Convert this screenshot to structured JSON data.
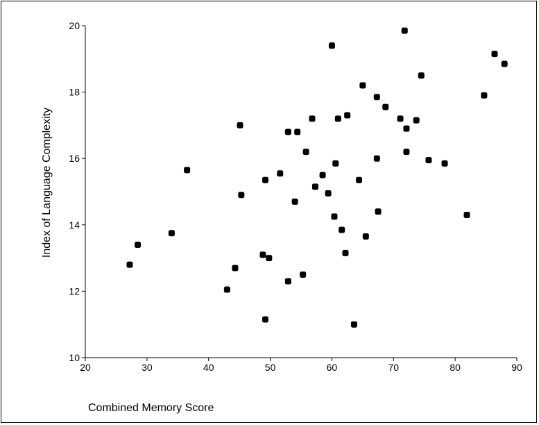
{
  "chart_data": {
    "type": "scatter",
    "title": "",
    "xlabel": "Combined Memory Score",
    "ylabel": "Index of Language Complexity",
    "xlim": [
      20,
      90
    ],
    "ylim": [
      10,
      20
    ],
    "x_ticks": [
      20,
      30,
      40,
      50,
      60,
      70,
      80,
      90
    ],
    "y_ticks": [
      10,
      12,
      14,
      16,
      18,
      20
    ],
    "x_tick_labels": [
      "20",
      "30",
      "40",
      "50",
      "60",
      "70",
      "80",
      "90"
    ],
    "y_tick_labels": [
      "10",
      "12",
      "14",
      "16",
      "18",
      "20"
    ],
    "grid": false,
    "legend": "none",
    "marker_color": "#000000",
    "points": [
      {
        "x": 27.2,
        "y": 12.8
      },
      {
        "x": 28.5,
        "y": 13.4
      },
      {
        "x": 34.0,
        "y": 13.75
      },
      {
        "x": 36.5,
        "y": 15.65
      },
      {
        "x": 43.0,
        "y": 12.05
      },
      {
        "x": 44.3,
        "y": 12.7
      },
      {
        "x": 45.1,
        "y": 17.0
      },
      {
        "x": 45.3,
        "y": 14.9
      },
      {
        "x": 48.8,
        "y": 13.1
      },
      {
        "x": 49.2,
        "y": 15.35
      },
      {
        "x": 49.2,
        "y": 11.15
      },
      {
        "x": 49.8,
        "y": 13.0
      },
      {
        "x": 51.6,
        "y": 15.55
      },
      {
        "x": 52.9,
        "y": 16.8
      },
      {
        "x": 52.9,
        "y": 12.3
      },
      {
        "x": 54.0,
        "y": 14.7
      },
      {
        "x": 54.4,
        "y": 16.8
      },
      {
        "x": 55.3,
        "y": 12.5
      },
      {
        "x": 55.8,
        "y": 16.2
      },
      {
        "x": 56.8,
        "y": 17.2
      },
      {
        "x": 57.3,
        "y": 15.15
      },
      {
        "x": 58.5,
        "y": 15.5
      },
      {
        "x": 59.4,
        "y": 14.95
      },
      {
        "x": 60.0,
        "y": 19.4
      },
      {
        "x": 60.4,
        "y": 14.25
      },
      {
        "x": 60.6,
        "y": 15.85
      },
      {
        "x": 61.0,
        "y": 17.2
      },
      {
        "x": 61.6,
        "y": 13.85
      },
      {
        "x": 62.2,
        "y": 13.15
      },
      {
        "x": 62.5,
        "y": 17.3
      },
      {
        "x": 63.6,
        "y": 11.0
      },
      {
        "x": 64.4,
        "y": 15.35
      },
      {
        "x": 65.0,
        "y": 18.2
      },
      {
        "x": 65.5,
        "y": 13.65
      },
      {
        "x": 67.3,
        "y": 17.85
      },
      {
        "x": 67.3,
        "y": 16.0
      },
      {
        "x": 67.5,
        "y": 14.4
      },
      {
        "x": 68.7,
        "y": 17.55
      },
      {
        "x": 71.1,
        "y": 17.2
      },
      {
        "x": 71.8,
        "y": 19.85
      },
      {
        "x": 72.1,
        "y": 16.9
      },
      {
        "x": 72.1,
        "y": 16.2
      },
      {
        "x": 73.7,
        "y": 17.15
      },
      {
        "x": 74.5,
        "y": 18.5
      },
      {
        "x": 75.7,
        "y": 15.95
      },
      {
        "x": 78.3,
        "y": 15.85
      },
      {
        "x": 81.9,
        "y": 14.3
      },
      {
        "x": 84.7,
        "y": 17.9
      },
      {
        "x": 86.4,
        "y": 19.15
      },
      {
        "x": 88.0,
        "y": 18.85
      }
    ]
  }
}
